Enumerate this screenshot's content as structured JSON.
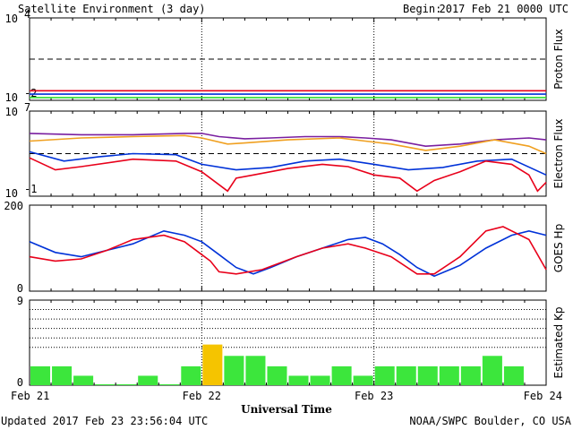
{
  "header": {
    "title": "Satellite Environment (3 day)",
    "begin_label": "Begin:",
    "begin_value": "2017 Feb 21 0000 UTC"
  },
  "footer": {
    "updated": "Updated 2017 Feb 23 23:56:04 UTC",
    "credit": "NOAA/SWPC Boulder, CO USA"
  },
  "x_axis": {
    "label": "Universal Time",
    "ticks": [
      "Feb 21",
      "Feb 22",
      "Feb 23",
      "Feb 24"
    ]
  },
  "colors": {
    "red": "#e8001a",
    "blue": "#0032d8",
    "green": "#2ee02e",
    "orange": "#f0a020",
    "purple": "#7a1fa0",
    "kp_normal": "#3ce63c",
    "kp_high": "#f5c400"
  },
  "chart_data": [
    {
      "type": "line",
      "name": "proton",
      "ylabel": "Proton Flux",
      "yscale": "log",
      "ylim": [
        0.01,
        10000
      ],
      "y_ticks": [
        {
          "base": "10",
          "exp": "4"
        },
        {
          "base": "10",
          "exp": "-2"
        }
      ],
      "threshold": 10,
      "x_days": [
        0,
        3
      ],
      "series": [
        {
          "color": "red",
          "points": [
            [
              0,
              0.05
            ],
            [
              3,
              0.05
            ]
          ]
        },
        {
          "color": "blue",
          "points": [
            [
              0,
              0.028
            ],
            [
              3,
              0.028
            ]
          ]
        },
        {
          "color": "green",
          "points": [
            [
              0,
              0.016
            ],
            [
              3,
              0.016
            ]
          ]
        }
      ]
    },
    {
      "type": "line",
      "name": "electron",
      "ylabel": "Electron Flux",
      "yscale": "log",
      "ylim": [
        0.1,
        10000000
      ],
      "y_ticks": [
        {
          "base": "10",
          "exp": "7"
        },
        {
          "base": "10",
          "exp": "-1"
        }
      ],
      "threshold": 1000,
      "x_days": [
        0,
        3
      ],
      "series": [
        {
          "color": "purple",
          "points": [
            [
              0,
              80000
            ],
            [
              0.3,
              60000
            ],
            [
              0.6,
              60000
            ],
            [
              0.9,
              80000
            ],
            [
              1.0,
              80000
            ],
            [
              1.1,
              40000
            ],
            [
              1.25,
              25000
            ],
            [
              1.4,
              30000
            ],
            [
              1.6,
              40000
            ],
            [
              1.8,
              40000
            ],
            [
              1.95,
              30000
            ],
            [
              2.1,
              20000
            ],
            [
              2.3,
              5000
            ],
            [
              2.5,
              8000
            ],
            [
              2.7,
              20000
            ],
            [
              2.9,
              30000
            ],
            [
              3.0,
              20000
            ]
          ]
        },
        {
          "color": "orange",
          "points": [
            [
              0,
              15000
            ],
            [
              0.3,
              30000
            ],
            [
              0.6,
              40000
            ],
            [
              0.9,
              50000
            ],
            [
              1.0,
              30000
            ],
            [
              1.15,
              8000
            ],
            [
              1.25,
              10000
            ],
            [
              1.5,
              20000
            ],
            [
              1.8,
              30000
            ],
            [
              1.95,
              15000
            ],
            [
              2.1,
              8000
            ],
            [
              2.3,
              2000
            ],
            [
              2.5,
              5000
            ],
            [
              2.7,
              20000
            ],
            [
              2.9,
              5000
            ],
            [
              3.0,
              1000
            ]
          ]
        },
        {
          "color": "blue",
          "points": [
            [
              0,
              1500
            ],
            [
              0.2,
              200
            ],
            [
              0.4,
              500
            ],
            [
              0.6,
              1000
            ],
            [
              0.85,
              800
            ],
            [
              1.0,
              100
            ],
            [
              1.2,
              30
            ],
            [
              1.4,
              50
            ],
            [
              1.6,
              200
            ],
            [
              1.8,
              300
            ],
            [
              2.0,
              100
            ],
            [
              2.2,
              30
            ],
            [
              2.4,
              50
            ],
            [
              2.6,
              200
            ],
            [
              2.8,
              300
            ],
            [
              3.0,
              10
            ]
          ]
        },
        {
          "color": "red",
          "points": [
            [
              0,
              400
            ],
            [
              0.15,
              30
            ],
            [
              0.3,
              60
            ],
            [
              0.6,
              300
            ],
            [
              0.85,
              200
            ],
            [
              1.0,
              20
            ],
            [
              1.15,
              0.3
            ],
            [
              1.2,
              5
            ],
            [
              1.3,
              10
            ],
            [
              1.5,
              40
            ],
            [
              1.7,
              100
            ],
            [
              1.85,
              60
            ],
            [
              2.0,
              10
            ],
            [
              2.15,
              5
            ],
            [
              2.25,
              0.3
            ],
            [
              2.35,
              3
            ],
            [
              2.5,
              20
            ],
            [
              2.65,
              200
            ],
            [
              2.8,
              100
            ],
            [
              2.9,
              10
            ],
            [
              2.95,
              0.3
            ],
            [
              3.0,
              2
            ]
          ]
        }
      ]
    },
    {
      "type": "line",
      "name": "goes_hp",
      "ylabel": "GOES Hp",
      "ylim": [
        0,
        200
      ],
      "y_ticks": [
        200,
        0
      ],
      "x_days": [
        0,
        3
      ],
      "series": [
        {
          "color": "blue",
          "points": [
            [
              0,
              115
            ],
            [
              0.15,
              90
            ],
            [
              0.3,
              80
            ],
            [
              0.45,
              95
            ],
            [
              0.6,
              110
            ],
            [
              0.78,
              140
            ],
            [
              0.9,
              130
            ],
            [
              1.0,
              115
            ],
            [
              1.1,
              85
            ],
            [
              1.2,
              55
            ],
            [
              1.3,
              40
            ],
            [
              1.4,
              55
            ],
            [
              1.55,
              80
            ],
            [
              1.7,
              100
            ],
            [
              1.85,
              120
            ],
            [
              1.95,
              125
            ],
            [
              2.05,
              110
            ],
            [
              2.15,
              85
            ],
            [
              2.25,
              55
            ],
            [
              2.35,
              35
            ],
            [
              2.5,
              60
            ],
            [
              2.65,
              100
            ],
            [
              2.8,
              130
            ],
            [
              2.9,
              140
            ],
            [
              3.0,
              130
            ]
          ]
        },
        {
          "color": "red",
          "points": [
            [
              0,
              80
            ],
            [
              0.15,
              70
            ],
            [
              0.3,
              75
            ],
            [
              0.45,
              95
            ],
            [
              0.6,
              120
            ],
            [
              0.78,
              130
            ],
            [
              0.9,
              115
            ],
            [
              1.0,
              85
            ],
            [
              1.05,
              70
            ],
            [
              1.1,
              45
            ],
            [
              1.2,
              40
            ],
            [
              1.35,
              50
            ],
            [
              1.55,
              80
            ],
            [
              1.7,
              100
            ],
            [
              1.85,
              110
            ],
            [
              1.95,
              100
            ],
            [
              2.1,
              80
            ],
            [
              2.25,
              40
            ],
            [
              2.35,
              40
            ],
            [
              2.5,
              80
            ],
            [
              2.65,
              140
            ],
            [
              2.75,
              150
            ],
            [
              2.9,
              120
            ],
            [
              3.0,
              50
            ]
          ]
        }
      ]
    },
    {
      "type": "bar",
      "name": "kp",
      "ylabel": "Estimated Kp",
      "ylim": [
        0,
        9
      ],
      "y_ticks": [
        9,
        0
      ],
      "y_gridlines": [
        4,
        5,
        6,
        7,
        8,
        9
      ],
      "bin_hours": 3,
      "values": [
        2,
        2,
        1,
        0.1,
        0.1,
        1,
        0.1,
        2,
        4.3,
        3.1,
        3.1,
        2,
        1,
        1,
        2,
        1,
        2,
        2,
        2,
        2,
        2,
        3.1,
        2,
        0
      ],
      "high_color_index": [
        8
      ]
    }
  ]
}
